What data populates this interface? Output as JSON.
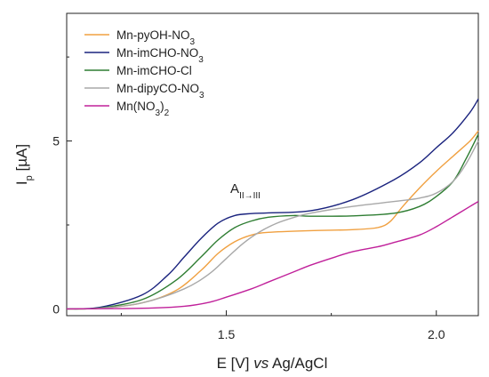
{
  "chart_data": {
    "type": "line",
    "xlabel": {
      "prefix": "E [V] ",
      "italic": "vs",
      "suffix": " Ag/AgCl"
    },
    "ylabel": {
      "main": "I",
      "sub": "p",
      "rest": " [µA]"
    },
    "xlim": [
      1.12,
      2.1
    ],
    "ylim": [
      -0.2,
      8.8
    ],
    "xticks": [
      1.5,
      2.0
    ],
    "xtick_labels": [
      "1.5",
      "2.0"
    ],
    "xminor": [
      1.25,
      1.75
    ],
    "yticks": [
      0,
      5
    ],
    "ytick_labels": [
      "0",
      "5"
    ],
    "yminor": [
      2.5,
      7.5
    ],
    "grid": false,
    "legend_position": "top-left",
    "annotation": {
      "text": "A",
      "sub": "II→III",
      "x": 1.59,
      "y": 3.45
    },
    "series": [
      {
        "legend": {
          "main": "Mn-pyOH-NO",
          "sub": "3",
          "rest": ""
        },
        "color": "#f0a040",
        "x": [
          1.12,
          1.2,
          1.3,
          1.38,
          1.44,
          1.48,
          1.52,
          1.56,
          1.6,
          1.7,
          1.8,
          1.86,
          1.89,
          1.92,
          1.96,
          2.0,
          2.04,
          2.08,
          2.1
        ],
        "y": [
          0.0,
          0.02,
          0.18,
          0.55,
          1.15,
          1.65,
          2.0,
          2.2,
          2.28,
          2.33,
          2.36,
          2.42,
          2.6,
          3.05,
          3.6,
          4.1,
          4.55,
          5.0,
          5.3
        ]
      },
      {
        "legend": {
          "main": "Mn-imCHO-NO",
          "sub": "3",
          "rest": ""
        },
        "color": "#1a237e",
        "x": [
          1.12,
          1.2,
          1.3,
          1.36,
          1.4,
          1.44,
          1.48,
          1.52,
          1.56,
          1.6,
          1.7,
          1.8,
          1.9,
          1.96,
          2.0,
          2.04,
          2.08,
          2.1
        ],
        "y": [
          0.0,
          0.05,
          0.42,
          1.0,
          1.55,
          2.1,
          2.55,
          2.78,
          2.84,
          2.86,
          2.92,
          3.25,
          3.85,
          4.35,
          4.8,
          5.25,
          5.85,
          6.25
        ]
      },
      {
        "legend": {
          "main": "Mn-imCHO-Cl",
          "sub": "",
          "rest": ""
        },
        "color": "#2e7d32",
        "x": [
          1.12,
          1.2,
          1.3,
          1.38,
          1.44,
          1.48,
          1.52,
          1.56,
          1.6,
          1.66,
          1.7,
          1.8,
          1.9,
          1.96,
          2.0,
          2.04,
          2.07,
          2.1
        ],
        "y": [
          0.0,
          0.03,
          0.28,
          0.85,
          1.55,
          2.05,
          2.42,
          2.62,
          2.73,
          2.78,
          2.76,
          2.77,
          2.85,
          3.05,
          3.35,
          3.8,
          4.45,
          5.2
        ]
      },
      {
        "legend": {
          "main": "Mn-dipyCO-NO",
          "sub": "3",
          "rest": ""
        },
        "color": "#a8a8a8",
        "x": [
          1.12,
          1.2,
          1.3,
          1.4,
          1.46,
          1.5,
          1.54,
          1.58,
          1.62,
          1.66,
          1.7,
          1.8,
          1.9,
          1.96,
          2.0,
          2.04,
          2.07,
          2.1
        ],
        "y": [
          0.0,
          0.02,
          0.18,
          0.6,
          1.05,
          1.5,
          1.95,
          2.3,
          2.55,
          2.72,
          2.85,
          3.05,
          3.2,
          3.3,
          3.45,
          3.8,
          4.3,
          5.0
        ]
      },
      {
        "legend": {
          "main": "Mn(NO",
          "sub": "3",
          "rest": ")"
        },
        "legend_tail_sub": "2",
        "color": "#c0209a",
        "x": [
          1.12,
          1.3,
          1.4,
          1.46,
          1.5,
          1.56,
          1.6,
          1.66,
          1.7,
          1.76,
          1.8,
          1.86,
          1.9,
          1.96,
          2.0,
          2.04,
          2.08,
          2.1
        ],
        "y": [
          0.0,
          0.02,
          0.08,
          0.2,
          0.35,
          0.6,
          0.8,
          1.1,
          1.3,
          1.55,
          1.7,
          1.85,
          1.98,
          2.2,
          2.45,
          2.75,
          3.05,
          3.2
        ]
      }
    ]
  }
}
